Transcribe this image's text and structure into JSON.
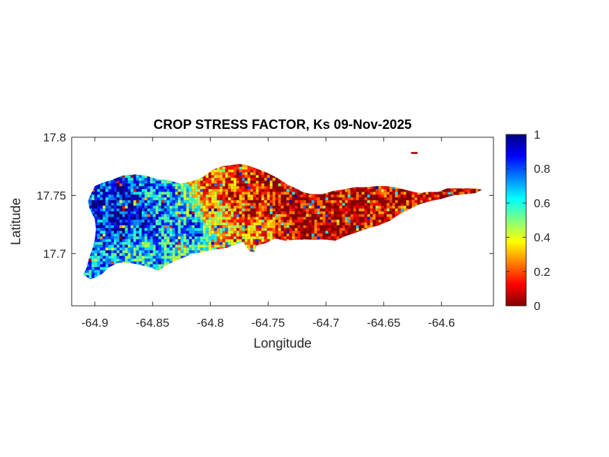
{
  "title": "CROP STRESS FACTOR, Ks  09-Nov-2025",
  "chart_data": {
    "type": "heatmap",
    "title": "CROP STRESS FACTOR, Ks  09-Nov-2025",
    "xlabel": "Longitude",
    "ylabel": "Latitude",
    "xlim": [
      -64.92,
      -64.555
    ],
    "ylim": [
      17.655,
      17.8
    ],
    "x_ticks": [
      -64.9,
      -64.85,
      -64.8,
      -64.75,
      -64.7,
      -64.65,
      -64.6
    ],
    "x_tick_labels": [
      "-64.9",
      "-64.85",
      "-64.8",
      "-64.75",
      "-64.7",
      "-64.65",
      "-64.6"
    ],
    "y_ticks": [
      17.7,
      17.75,
      17.8
    ],
    "y_tick_labels": [
      "17.7",
      "17.75",
      "17.8"
    ],
    "colormap": "jet-reversed",
    "color_range": [
      0,
      1
    ],
    "colorbar_ticks": [
      0,
      0.2,
      0.4,
      0.6,
      0.8,
      1
    ],
    "colorbar_tick_labels": [
      "0",
      "0.2",
      "0.4",
      "0.6",
      "0.8",
      "1"
    ],
    "colorbar_colors": [
      "#800000",
      "#ff0000",
      "#ff8000",
      "#ffff00",
      "#80ff80",
      "#00ffff",
      "#0080ff",
      "#0000ff",
      "#000080"
    ],
    "island_outline_lonlat": [
      [
        -64.9,
        17.679
      ],
      [
        -64.893,
        17.683
      ],
      [
        -64.888,
        17.688
      ],
      [
        -64.88,
        17.692
      ],
      [
        -64.87,
        17.692
      ],
      [
        -64.86,
        17.69
      ],
      [
        -64.852,
        17.688
      ],
      [
        -64.845,
        17.685
      ],
      [
        -64.838,
        17.69
      ],
      [
        -64.83,
        17.694
      ],
      [
        -64.822,
        17.697
      ],
      [
        -64.815,
        17.7
      ],
      [
        -64.807,
        17.701
      ],
      [
        -64.8,
        17.703
      ],
      [
        -64.792,
        17.704
      ],
      [
        -64.785,
        17.705
      ],
      [
        -64.778,
        17.708
      ],
      [
        -64.772,
        17.71
      ],
      [
        -64.766,
        17.702
      ],
      [
        -64.762,
        17.701
      ],
      [
        -64.76,
        17.707
      ],
      [
        -64.752,
        17.709
      ],
      [
        -64.744,
        17.713
      ],
      [
        -64.735,
        17.711
      ],
      [
        -64.727,
        17.712
      ],
      [
        -64.718,
        17.712
      ],
      [
        -64.708,
        17.712
      ],
      [
        -64.7,
        17.712
      ],
      [
        -64.692,
        17.711
      ],
      [
        -64.683,
        17.715
      ],
      [
        -64.674,
        17.718
      ],
      [
        -64.663,
        17.722
      ],
      [
        -64.655,
        17.724
      ],
      [
        -64.645,
        17.728
      ],
      [
        -64.636,
        17.734
      ],
      [
        -64.628,
        17.738
      ],
      [
        -64.62,
        17.742
      ],
      [
        -64.61,
        17.745
      ],
      [
        -64.6,
        17.747
      ],
      [
        -64.59,
        17.75
      ],
      [
        -64.58,
        17.751
      ],
      [
        -64.57,
        17.752
      ],
      [
        -64.565,
        17.755
      ],
      [
        -64.572,
        17.756
      ],
      [
        -64.583,
        17.756
      ],
      [
        -64.595,
        17.756
      ],
      [
        -64.603,
        17.753
      ],
      [
        -64.612,
        17.753
      ],
      [
        -64.618,
        17.752
      ],
      [
        -64.624,
        17.753
      ],
      [
        -64.632,
        17.755
      ],
      [
        -64.64,
        17.757
      ],
      [
        -64.648,
        17.758
      ],
      [
        -64.656,
        17.758
      ],
      [
        -64.665,
        17.757
      ],
      [
        -64.675,
        17.757
      ],
      [
        -64.685,
        17.755
      ],
      [
        -64.693,
        17.754
      ],
      [
        -64.703,
        17.751
      ],
      [
        -64.713,
        17.751
      ],
      [
        -64.72,
        17.753
      ],
      [
        -64.726,
        17.756
      ],
      [
        -64.733,
        17.759
      ],
      [
        -64.742,
        17.765
      ],
      [
        -64.752,
        17.77
      ],
      [
        -64.76,
        17.773
      ],
      [
        -64.768,
        17.776
      ],
      [
        -64.775,
        17.777
      ],
      [
        -64.782,
        17.776
      ],
      [
        -64.79,
        17.775
      ],
      [
        -64.798,
        17.772
      ],
      [
        -64.806,
        17.766
      ],
      [
        -64.816,
        17.762
      ],
      [
        -64.826,
        17.76
      ],
      [
        -64.836,
        17.763
      ],
      [
        -64.846,
        17.764
      ],
      [
        -64.856,
        17.767
      ],
      [
        -64.866,
        17.768
      ],
      [
        -64.876,
        17.767
      ],
      [
        -64.886,
        17.763
      ],
      [
        -64.893,
        17.761
      ],
      [
        -64.9,
        17.758
      ],
      [
        -64.903,
        17.752
      ],
      [
        -64.906,
        17.745
      ],
      [
        -64.904,
        17.737
      ],
      [
        -64.9,
        17.73
      ],
      [
        -64.899,
        17.721
      ],
      [
        -64.9,
        17.712
      ],
      [
        -64.902,
        17.704
      ],
      [
        -64.905,
        17.696
      ],
      [
        -64.907,
        17.688
      ],
      [
        -64.91,
        17.682
      ],
      [
        -64.904,
        17.678
      ]
    ],
    "islet_outline_lonlat": [
      [
        -64.626,
        17.787
      ],
      [
        -64.621,
        17.787
      ],
      [
        -64.621,
        17.786
      ],
      [
        -64.626,
        17.786
      ]
    ],
    "value_regions": [
      {
        "lon": -64.87,
        "lat": 17.735,
        "value": 0.95,
        "radius": 0.02
      },
      {
        "lon": -64.885,
        "lat": 17.745,
        "value": 0.85,
        "radius": 0.015
      },
      {
        "lon": -64.855,
        "lat": 17.722,
        "value": 0.78,
        "radius": 0.018
      },
      {
        "lon": -64.84,
        "lat": 17.745,
        "value": 0.7,
        "radius": 0.02
      },
      {
        "lon": -64.86,
        "lat": 17.7,
        "value": 0.6,
        "radius": 0.015
      },
      {
        "lon": -64.815,
        "lat": 17.72,
        "value": 0.75,
        "radius": 0.015
      },
      {
        "lon": -64.79,
        "lat": 17.73,
        "value": 0.35,
        "radius": 0.02
      },
      {
        "lon": -64.8,
        "lat": 17.76,
        "value": 0.2,
        "radius": 0.015
      },
      {
        "lon": -64.77,
        "lat": 17.745,
        "value": 0.12,
        "radius": 0.025
      },
      {
        "lon": -64.755,
        "lat": 17.72,
        "value": 0.3,
        "radius": 0.012
      },
      {
        "lon": -64.72,
        "lat": 17.74,
        "value": 0.05,
        "radius": 0.03
      },
      {
        "lon": -64.68,
        "lat": 17.735,
        "value": 0.08,
        "radius": 0.03
      },
      {
        "lon": -64.63,
        "lat": 17.745,
        "value": 0.1,
        "radius": 0.02
      },
      {
        "lon": -64.59,
        "lat": 17.752,
        "value": 0.05,
        "radius": 0.015
      }
    ]
  }
}
